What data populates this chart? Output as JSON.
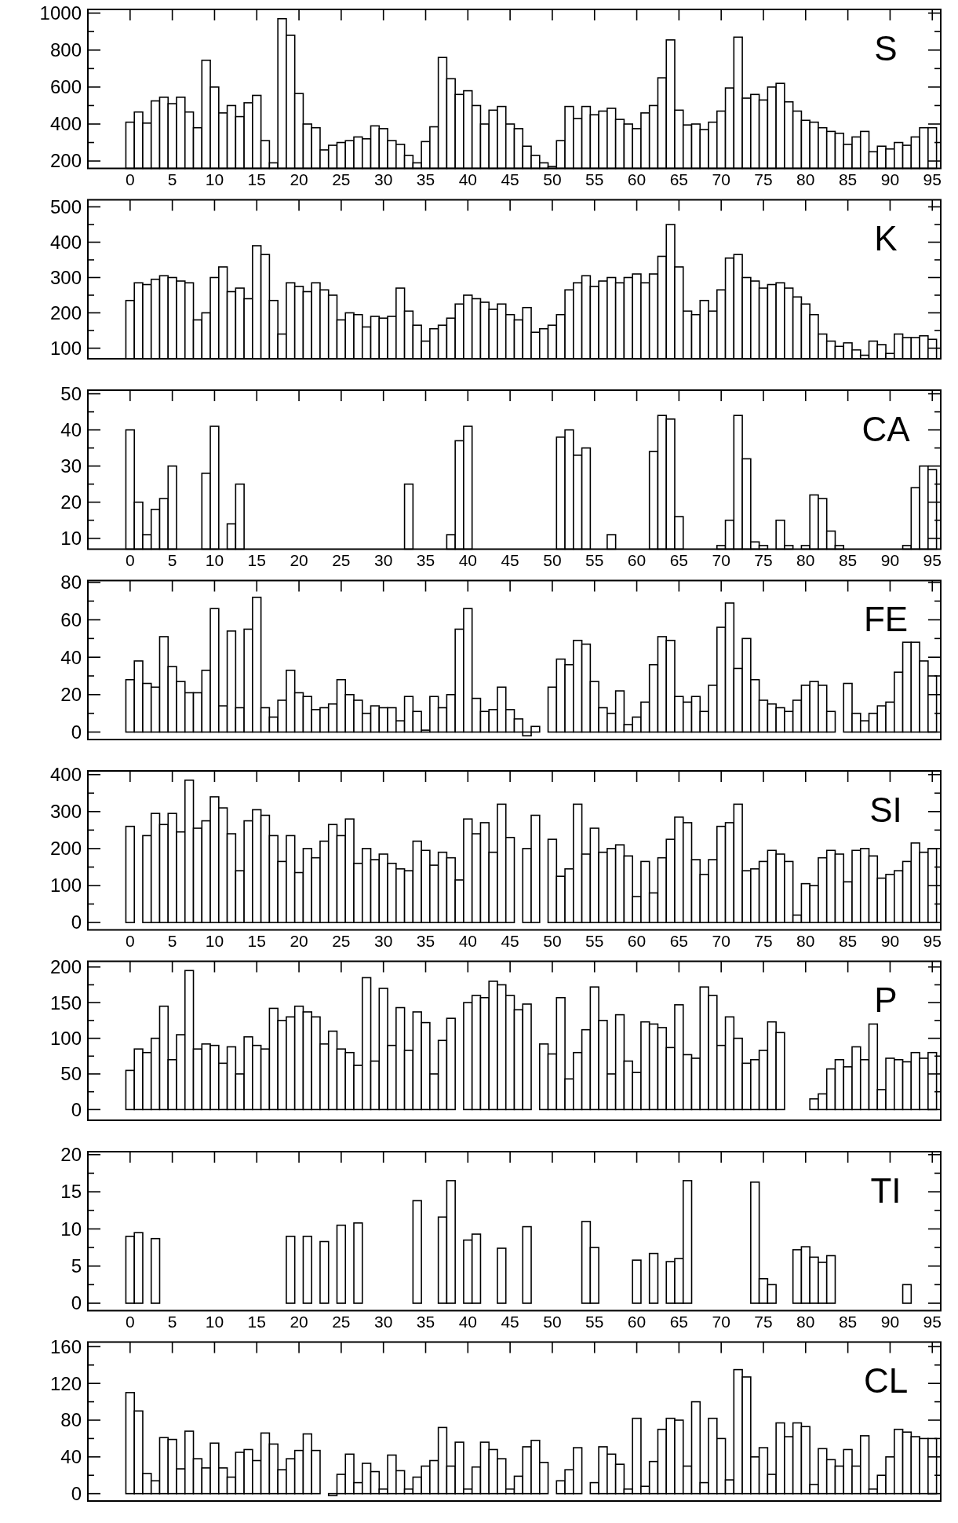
{
  "chart_data": [
    {
      "type": "bar",
      "title": "S",
      "color": "#ffffff",
      "xlim": [
        -5,
        96
      ],
      "xticks": [
        0,
        5,
        10,
        15,
        20,
        25,
        30,
        35,
        40,
        45,
        50,
        55,
        60,
        65,
        70,
        75,
        80,
        85,
        90,
        95
      ],
      "ylim": [
        160,
        1020
      ],
      "yticks": [
        200,
        {
          "value": 300,
          "label": null
        },
        400,
        {
          "value": 500,
          "label": null
        },
        600,
        {
          "value": 700,
          "label": null
        },
        800,
        {
          "value": 900,
          "label": null
        },
        1000
      ],
      "x": [
        0,
        1,
        2,
        3,
        4,
        5,
        6,
        7,
        8,
        9,
        10,
        11,
        12,
        13,
        14,
        15,
        16,
        17,
        18,
        19,
        20,
        21,
        22,
        23,
        24,
        25,
        26,
        27,
        28,
        29,
        30,
        31,
        32,
        33,
        34,
        35,
        36,
        37,
        38,
        39,
        40,
        41,
        42,
        43,
        44,
        45,
        46,
        47,
        48,
        49,
        50,
        51,
        52,
        53,
        54,
        55,
        56,
        57,
        58,
        59,
        60,
        61,
        62,
        63,
        64,
        65,
        66,
        67,
        68,
        69,
        70,
        71,
        72,
        73,
        74,
        75,
        76,
        77,
        78,
        79,
        80,
        81,
        82,
        83,
        84,
        85,
        86,
        87,
        88,
        89,
        90,
        91,
        92,
        93,
        94,
        95
      ],
      "values": [
        410,
        465,
        405,
        525,
        545,
        510,
        545,
        465,
        380,
        745,
        600,
        460,
        500,
        440,
        515,
        555,
        310,
        190,
        970,
        880,
        565,
        400,
        380,
        260,
        285,
        300,
        310,
        330,
        320,
        390,
        375,
        310,
        290,
        230,
        190,
        305,
        385,
        760,
        645,
        560,
        580,
        500,
        400,
        475,
        495,
        400,
        375,
        280,
        230,
        190,
        170,
        310,
        495,
        430,
        495,
        450,
        470,
        485,
        425,
        400,
        375,
        460,
        500,
        650,
        855,
        475,
        395,
        400,
        370,
        410,
        470,
        595,
        870,
        540,
        560,
        530,
        600,
        620,
        520,
        470,
        420,
        410,
        380,
        360,
        350,
        290,
        330,
        360,
        250,
        280,
        265,
        300,
        285,
        330,
        380,
        380
      ]
    },
    {
      "type": "bar",
      "title": "K",
      "color": "#ffffff",
      "tick_labels": "y",
      "xlim": [
        -5,
        96
      ],
      "xticks": [
        0,
        5,
        10,
        15,
        20,
        25,
        30,
        35,
        40,
        45,
        50,
        55,
        60,
        65,
        70,
        75,
        80,
        85,
        90,
        95
      ],
      "ylim": [
        70,
        520
      ],
      "yticks": [
        100,
        {
          "value": 150,
          "label": null
        },
        200,
        {
          "value": 250,
          "label": null
        },
        300,
        {
          "value": 350,
          "label": null
        },
        400,
        {
          "value": 450,
          "label": null
        },
        500
      ],
      "x": [
        0,
        1,
        2,
        3,
        4,
        5,
        6,
        7,
        8,
        9,
        10,
        11,
        12,
        13,
        14,
        15,
        16,
        17,
        18,
        19,
        20,
        21,
        22,
        23,
        24,
        25,
        26,
        27,
        28,
        29,
        30,
        31,
        32,
        33,
        34,
        35,
        36,
        37,
        38,
        39,
        40,
        41,
        42,
        43,
        44,
        45,
        46,
        47,
        48,
        49,
        50,
        51,
        52,
        53,
        54,
        55,
        56,
        57,
        58,
        59,
        60,
        61,
        62,
        63,
        64,
        65,
        66,
        67,
        68,
        69,
        70,
        71,
        72,
        73,
        74,
        75,
        76,
        77,
        78,
        79,
        80,
        81,
        82,
        83,
        84,
        85,
        86,
        87,
        88,
        89,
        90,
        91,
        92,
        93,
        94,
        95
      ],
      "values": [
        235,
        285,
        280,
        295,
        305,
        300,
        290,
        285,
        180,
        200,
        300,
        330,
        260,
        270,
        240,
        390,
        365,
        235,
        140,
        285,
        275,
        260,
        285,
        265,
        250,
        180,
        200,
        195,
        160,
        190,
        185,
        190,
        270,
        205,
        165,
        120,
        155,
        165,
        185,
        225,
        250,
        240,
        230,
        210,
        225,
        195,
        180,
        215,
        145,
        155,
        165,
        195,
        265,
        285,
        305,
        275,
        290,
        300,
        285,
        300,
        310,
        285,
        310,
        360,
        450,
        330,
        205,
        195,
        235,
        205,
        265,
        355,
        365,
        300,
        290,
        270,
        280,
        285,
        270,
        245,
        225,
        195,
        140,
        120,
        105,
        115,
        95,
        80,
        120,
        110,
        85,
        140,
        130,
        130,
        135,
        125
      ]
    },
    {
      "type": "bar",
      "title": "CA",
      "color": "#ffffff",
      "xlim": [
        -5,
        96
      ],
      "xticks": [
        0,
        5,
        10,
        15,
        20,
        25,
        30,
        35,
        40,
        45,
        50,
        55,
        60,
        65,
        70,
        75,
        80,
        85,
        90,
        95
      ],
      "ylim": [
        7,
        51
      ],
      "yticks": [
        10,
        {
          "value": 15,
          "label": null
        },
        20,
        {
          "value": 25,
          "label": null
        },
        30,
        {
          "value": 35,
          "label": null
        },
        40,
        {
          "value": 45,
          "label": null
        },
        50
      ],
      "x": [
        0,
        1,
        2,
        3,
        4,
        5,
        6,
        7,
        8,
        9,
        10,
        11,
        12,
        13,
        14,
        15,
        16,
        17,
        18,
        19,
        20,
        21,
        22,
        23,
        24,
        25,
        26,
        27,
        28,
        29,
        30,
        31,
        32,
        33,
        34,
        35,
        36,
        37,
        38,
        39,
        40,
        41,
        42,
        43,
        44,
        45,
        46,
        47,
        48,
        49,
        50,
        51,
        52,
        53,
        54,
        55,
        56,
        57,
        58,
        59,
        60,
        61,
        62,
        63,
        64,
        65,
        66,
        67,
        68,
        69,
        70,
        71,
        72,
        73,
        74,
        75,
        76,
        77,
        78,
        79,
        80,
        81,
        82,
        83,
        84,
        85,
        86,
        87,
        88,
        89,
        90,
        91,
        92,
        93,
        94,
        95
      ],
      "values": [
        40,
        20,
        11,
        18,
        21,
        30,
        null,
        null,
        null,
        28,
        41,
        null,
        14,
        25,
        null,
        null,
        null,
        null,
        null,
        null,
        null,
        null,
        null,
        null,
        null,
        null,
        null,
        null,
        null,
        null,
        null,
        null,
        null,
        25,
        null,
        null,
        null,
        null,
        11,
        37,
        41,
        null,
        null,
        null,
        null,
        null,
        null,
        null,
        null,
        null,
        null,
        38,
        40,
        33,
        35,
        null,
        null,
        11,
        null,
        null,
        null,
        null,
        34,
        44,
        43,
        16,
        null,
        null,
        null,
        null,
        8,
        15,
        44,
        32,
        9,
        8,
        null,
        15,
        8,
        null,
        8,
        22,
        21,
        12,
        8,
        null,
        null,
        null,
        null,
        null,
        null,
        null,
        8,
        24,
        30,
        29
      ]
    },
    {
      "type": "bar",
      "title": "FE",
      "color": "#ffffff",
      "tick_labels": "y",
      "xlim": [
        -5,
        96
      ],
      "xticks": [
        0,
        5,
        10,
        15,
        20,
        25,
        30,
        35,
        40,
        45,
        50,
        55,
        60,
        65,
        70,
        75,
        80,
        85,
        90,
        95
      ],
      "ylim": [
        -4,
        81
      ],
      "yticks": [
        0,
        {
          "value": 10,
          "label": null
        },
        20,
        {
          "value": 30,
          "label": null
        },
        40,
        {
          "value": 50,
          "label": null
        },
        60,
        {
          "value": 70,
          "label": null
        },
        80
      ],
      "x": [
        0,
        1,
        2,
        3,
        4,
        5,
        6,
        7,
        8,
        9,
        10,
        11,
        12,
        13,
        14,
        15,
        16,
        17,
        18,
        19,
        20,
        21,
        22,
        23,
        24,
        25,
        26,
        27,
        28,
        29,
        30,
        31,
        32,
        33,
        34,
        35,
        36,
        37,
        38,
        39,
        40,
        41,
        42,
        43,
        44,
        45,
        46,
        47,
        48,
        49,
        50,
        51,
        52,
        53,
        54,
        55,
        56,
        57,
        58,
        59,
        60,
        61,
        62,
        63,
        64,
        65,
        66,
        67,
        68,
        69,
        70,
        71,
        72,
        73,
        74,
        75,
        76,
        77,
        78,
        79,
        80,
        81,
        82,
        83,
        84,
        85,
        86,
        87,
        88,
        89,
        90,
        91,
        92,
        93,
        94,
        95
      ],
      "values": [
        28,
        38,
        26,
        24,
        51,
        35,
        27,
        21,
        21,
        33,
        66,
        14,
        54,
        13,
        55,
        72,
        13,
        8,
        17,
        33,
        21,
        19,
        12,
        13,
        15,
        28,
        20,
        17,
        10,
        14,
        13,
        13,
        6,
        19,
        11,
        1,
        19,
        13,
        20,
        55,
        66,
        18,
        11,
        12,
        24,
        12,
        7,
        -2,
        3,
        null,
        24,
        39,
        36,
        49,
        47,
        27,
        13,
        10,
        22,
        4,
        8,
        16,
        36,
        51,
        49,
        19,
        16,
        19,
        11,
        25,
        56,
        69,
        34,
        50,
        28,
        17,
        15,
        13,
        11,
        17,
        25,
        27,
        25,
        11,
        0,
        26,
        10,
        6,
        10,
        14,
        16,
        32,
        48,
        48,
        38,
        30
      ]
    },
    {
      "type": "bar",
      "title": "SI",
      "color": "#ffffff",
      "xlim": [
        -5,
        96
      ],
      "xticks": [
        0,
        5,
        10,
        15,
        20,
        25,
        30,
        35,
        40,
        45,
        50,
        55,
        60,
        65,
        70,
        75,
        80,
        85,
        90,
        95
      ],
      "ylim": [
        -20,
        410
      ],
      "yticks": [
        0,
        {
          "value": 50,
          "label": null
        },
        100,
        {
          "value": 150,
          "label": null
        },
        200,
        {
          "value": 250,
          "label": null
        },
        300,
        {
          "value": 350,
          "label": null
        },
        400
      ],
      "x": [
        0,
        1,
        2,
        3,
        4,
        5,
        6,
        7,
        8,
        9,
        10,
        11,
        12,
        13,
        14,
        15,
        16,
        17,
        18,
        19,
        20,
        21,
        22,
        23,
        24,
        25,
        26,
        27,
        28,
        29,
        30,
        31,
        32,
        33,
        34,
        35,
        36,
        37,
        38,
        39,
        40,
        41,
        42,
        43,
        44,
        45,
        46,
        47,
        48,
        49,
        50,
        51,
        52,
        53,
        54,
        55,
        56,
        57,
        58,
        59,
        60,
        61,
        62,
        63,
        64,
        65,
        66,
        67,
        68,
        69,
        70,
        71,
        72,
        73,
        74,
        75,
        76,
        77,
        78,
        79,
        80,
        81,
        82,
        83,
        84,
        85,
        86,
        87,
        88,
        89,
        90,
        91,
        92,
        93,
        94,
        95
      ],
      "values": [
        260,
        null,
        235,
        295,
        265,
        295,
        245,
        385,
        255,
        275,
        340,
        310,
        240,
        140,
        275,
        305,
        290,
        235,
        165,
        235,
        135,
        200,
        175,
        220,
        265,
        235,
        280,
        160,
        200,
        170,
        185,
        160,
        145,
        140,
        220,
        195,
        155,
        190,
        175,
        115,
        280,
        240,
        270,
        190,
        320,
        230,
        null,
        200,
        290,
        null,
        225,
        125,
        145,
        320,
        185,
        255,
        190,
        200,
        210,
        180,
        70,
        165,
        80,
        175,
        225,
        285,
        270,
        170,
        130,
        170,
        260,
        270,
        320,
        140,
        145,
        165,
        195,
        185,
        165,
        20,
        105,
        100,
        175,
        195,
        185,
        110,
        195,
        200,
        180,
        120,
        130,
        140,
        165,
        215,
        190,
        200
      ]
    },
    {
      "type": "bar",
      "title": "P",
      "color": "#ffffff",
      "tick_labels": "y",
      "xlim": [
        -5,
        96
      ],
      "xticks": [
        0,
        5,
        10,
        15,
        20,
        25,
        30,
        35,
        40,
        45,
        50,
        55,
        60,
        65,
        70,
        75,
        80,
        85,
        90,
        95
      ],
      "ylim": [
        -15,
        208
      ],
      "yticks": [
        0,
        {
          "value": 25,
          "label": null
        },
        50,
        {
          "value": 75,
          "label": null
        },
        100,
        {
          "value": 125,
          "label": null
        },
        150,
        {
          "value": 175,
          "label": null
        },
        200
      ],
      "x": [
        0,
        1,
        2,
        3,
        4,
        5,
        6,
        7,
        8,
        9,
        10,
        11,
        12,
        13,
        14,
        15,
        16,
        17,
        18,
        19,
        20,
        21,
        22,
        23,
        24,
        25,
        26,
        27,
        28,
        29,
        30,
        31,
        32,
        33,
        34,
        35,
        36,
        37,
        38,
        39,
        40,
        41,
        42,
        43,
        44,
        45,
        46,
        47,
        48,
        49,
        50,
        51,
        52,
        53,
        54,
        55,
        56,
        57,
        58,
        59,
        60,
        61,
        62,
        63,
        64,
        65,
        66,
        67,
        68,
        69,
        70,
        71,
        72,
        73,
        74,
        75,
        76,
        77,
        78,
        79,
        80,
        81,
        82,
        83,
        84,
        85,
        86,
        87,
        88,
        89,
        90,
        91,
        92,
        93,
        94,
        95
      ],
      "values": [
        55,
        85,
        80,
        100,
        145,
        70,
        105,
        195,
        85,
        92,
        90,
        65,
        88,
        50,
        102,
        90,
        85,
        142,
        125,
        130,
        145,
        137,
        130,
        92,
        110,
        85,
        80,
        62,
        185,
        68,
        170,
        90,
        143,
        83,
        137,
        122,
        50,
        97,
        128,
        null,
        150,
        160,
        157,
        180,
        175,
        160,
        140,
        148,
        null,
        92,
        78,
        157,
        43,
        80,
        112,
        172,
        125,
        50,
        133,
        68,
        52,
        123,
        120,
        115,
        87,
        147,
        77,
        72,
        172,
        160,
        90,
        130,
        100,
        65,
        70,
        83,
        123,
        108,
        null,
        null,
        null,
        15,
        22,
        57,
        70,
        60,
        88,
        70,
        120,
        28,
        72,
        70,
        67,
        80,
        72,
        80
      ]
    },
    {
      "type": "bar",
      "title": "TI",
      "color": "#ffffff",
      "xlim": [
        -5,
        96
      ],
      "xticks": [
        0,
        5,
        10,
        15,
        20,
        25,
        30,
        35,
        40,
        45,
        50,
        55,
        60,
        65,
        70,
        75,
        80,
        85,
        90,
        95
      ],
      "ylim": [
        -1,
        20.4
      ],
      "yticks": [
        0,
        {
          "value": 2.5,
          "label": null
        },
        5,
        {
          "value": 7.5,
          "label": null
        },
        10,
        {
          "value": 12.5,
          "label": null
        },
        15,
        {
          "value": 17.5,
          "label": null
        },
        20
      ],
      "x": [
        0,
        1,
        3,
        19,
        21,
        23,
        25,
        27,
        34,
        37,
        38,
        40,
        41,
        44,
        47,
        54,
        55,
        60,
        62,
        64,
        65,
        66,
        74,
        75,
        76,
        79,
        80,
        81,
        82,
        83,
        92
      ],
      "values": [
        9,
        9.5,
        8.7,
        9,
        9,
        8.3,
        10.5,
        10.8,
        13.8,
        11.6,
        16.5,
        8.5,
        9.3,
        7.4,
        10.3,
        11,
        7.5,
        5.8,
        6.7,
        5.6,
        6,
        16.5,
        16.3,
        3.3,
        2.5,
        7.2,
        7.6,
        6.2,
        5.5,
        6.4,
        2.5
      ]
    },
    {
      "type": "bar",
      "title": "CL",
      "color": "#ffffff",
      "tick_labels": "y",
      "xlim": [
        -5,
        96
      ],
      "xticks": [
        0,
        5,
        10,
        15,
        20,
        25,
        30,
        35,
        40,
        45,
        50,
        55,
        60,
        65,
        70,
        75,
        80,
        85,
        90,
        95
      ],
      "ylim": [
        -8,
        165
      ],
      "yticks": [
        0,
        {
          "value": 20,
          "label": null
        },
        40,
        {
          "value": 60,
          "label": null
        },
        80,
        {
          "value": 100,
          "label": null
        },
        120,
        {
          "value": 140,
          "label": null
        },
        160
      ],
      "x": [
        0,
        1,
        2,
        3,
        4,
        5,
        6,
        7,
        8,
        9,
        10,
        11,
        12,
        13,
        14,
        15,
        16,
        17,
        18,
        19,
        20,
        21,
        22,
        23,
        24,
        25,
        26,
        27,
        28,
        29,
        30,
        31,
        32,
        33,
        34,
        35,
        36,
        37,
        38,
        39,
        40,
        41,
        42,
        43,
        44,
        45,
        46,
        47,
        48,
        49,
        50,
        51,
        52,
        53,
        54,
        55,
        56,
        57,
        58,
        59,
        60,
        61,
        62,
        63,
        64,
        65,
        66,
        67,
        68,
        69,
        70,
        71,
        72,
        73,
        74,
        75,
        76,
        77,
        78,
        79,
        80,
        81,
        82,
        83,
        84,
        85,
        86,
        87,
        88,
        89,
        90,
        91,
        92,
        93,
        94,
        95
      ],
      "values": [
        110,
        90,
        22,
        14,
        61,
        59,
        27,
        68,
        38,
        28,
        55,
        28,
        18,
        45,
        48,
        36,
        66,
        54,
        26,
        38,
        47,
        65,
        47,
        0,
        -2,
        21,
        43,
        12,
        33,
        24,
        5,
        42,
        25,
        5,
        18,
        30,
        36,
        72,
        30,
        56,
        5,
        29,
        56,
        48,
        38,
        5,
        19,
        51,
        58,
        34,
        0,
        14,
        26,
        50,
        0,
        12,
        51,
        43,
        32,
        5,
        82,
        8,
        35,
        70,
        82,
        80,
        30,
        100,
        12,
        82,
        60,
        15,
        135,
        127,
        40,
        50,
        21,
        77,
        62,
        77,
        73,
        10,
        49,
        37,
        30,
        48,
        30,
        63,
        5,
        20,
        40,
        70,
        67,
        62,
        60,
        60
      ]
    }
  ]
}
